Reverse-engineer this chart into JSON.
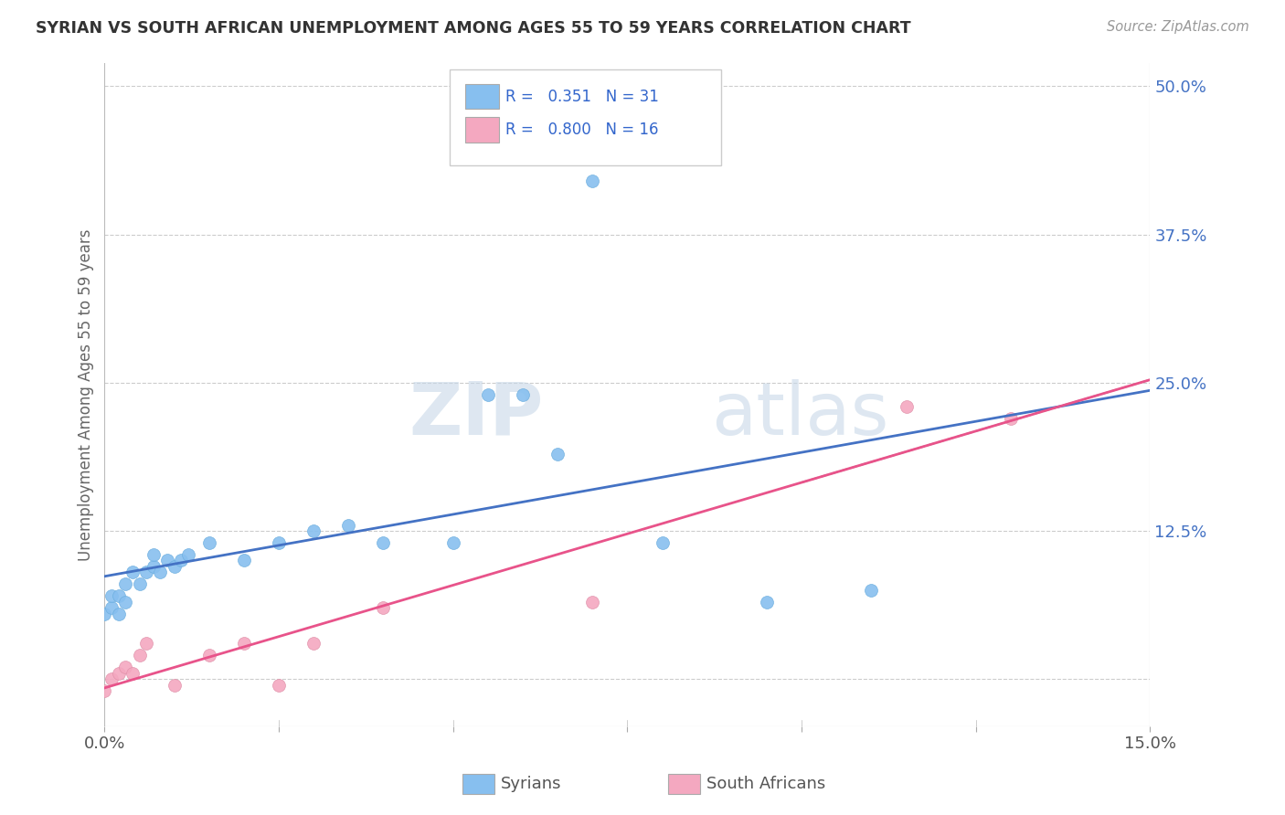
{
  "title": "SYRIAN VS SOUTH AFRICAN UNEMPLOYMENT AMONG AGES 55 TO 59 YEARS CORRELATION CHART",
  "source": "Source: ZipAtlas.com",
  "ylabel": "Unemployment Among Ages 55 to 59 years",
  "xlabel_syrians": "Syrians",
  "xlabel_south_africans": "South Africans",
  "xlim": [
    0.0,
    0.15
  ],
  "ylim": [
    -0.04,
    0.52
  ],
  "xticks": [
    0.0,
    0.025,
    0.05,
    0.075,
    0.1,
    0.125,
    0.15
  ],
  "xtick_labels": [
    "0.0%",
    "",
    "",
    "",
    "",
    "",
    "15.0%"
  ],
  "yticks": [
    0.0,
    0.125,
    0.25,
    0.375,
    0.5
  ],
  "ytick_labels": [
    "",
    "12.5%",
    "25.0%",
    "37.5%",
    "50.0%"
  ],
  "syrian_R": "0.351",
  "syrian_N": "31",
  "south_african_R": "0.800",
  "south_african_N": "16",
  "syrian_color": "#87BFEF",
  "south_african_color": "#F4A8C0",
  "syrian_line_color": "#4472C4",
  "south_african_line_color": "#E8538A",
  "background_color": "#FFFFFF",
  "grid_color": "#DDDDDD",
  "watermark_zip": "ZIP",
  "watermark_atlas": "atlas",
  "syrians_x": [
    0.0,
    0.001,
    0.001,
    0.002,
    0.002,
    0.003,
    0.003,
    0.004,
    0.005,
    0.006,
    0.007,
    0.007,
    0.008,
    0.009,
    0.01,
    0.011,
    0.012,
    0.015,
    0.02,
    0.025,
    0.03,
    0.035,
    0.04,
    0.05,
    0.055,
    0.06,
    0.065,
    0.07,
    0.08,
    0.095,
    0.11
  ],
  "syrians_y": [
    0.055,
    0.06,
    0.07,
    0.055,
    0.07,
    0.065,
    0.08,
    0.09,
    0.08,
    0.09,
    0.095,
    0.105,
    0.09,
    0.1,
    0.095,
    0.1,
    0.105,
    0.115,
    0.1,
    0.115,
    0.125,
    0.13,
    0.115,
    0.115,
    0.24,
    0.24,
    0.19,
    0.42,
    0.115,
    0.065,
    0.075
  ],
  "south_africans_x": [
    0.0,
    0.001,
    0.002,
    0.003,
    0.004,
    0.005,
    0.006,
    0.01,
    0.015,
    0.02,
    0.025,
    0.03,
    0.04,
    0.07,
    0.115,
    0.13
  ],
  "south_africans_y": [
    -0.01,
    0.0,
    0.005,
    0.01,
    0.005,
    0.02,
    0.03,
    -0.005,
    0.02,
    0.03,
    -0.005,
    0.03,
    0.06,
    0.065,
    0.23,
    0.22
  ]
}
